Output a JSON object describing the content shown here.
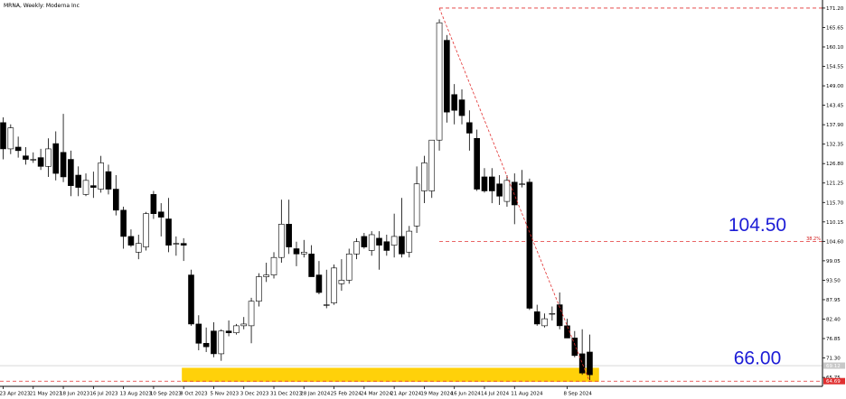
{
  "chart_data": {
    "type": "candlestick",
    "title": "MRNA, Weekly:  Moderna Inc",
    "ylim": [
      63.2,
      173.5
    ],
    "y_ticks": [
      "171.20",
      "165.65",
      "160.10",
      "154.55",
      "149.00",
      "143.45",
      "137.90",
      "132.35",
      "126.80",
      "121.25",
      "115.70",
      "110.15",
      "104.60",
      "99.05",
      "93.50",
      "87.95",
      "82.40",
      "76.85",
      "71.30",
      "65.75"
    ],
    "x_tick_labels": [
      "23 Apr 2023",
      "21 May 2023",
      "18 Jun 2023",
      "16 Jul 2023",
      "13 Aug 2023",
      "10 Sep 2023",
      "8 Oct 2023",
      "5 Nov 2023",
      "3 Dec 2023",
      "31 Dec 2023",
      "28 Jan 2024",
      "25 Feb 2024",
      "24 Mar 2024",
      "21 Apr 2024",
      "19 May 2024",
      "16 Jun 2024",
      "14 Jul 2024",
      "11 Aug 2024",
      "8 Sep 2024"
    ],
    "candles": [
      {
        "o": 138.5,
        "h": 140.0,
        "l": 128.0,
        "c": 131.0
      },
      {
        "o": 131.0,
        "h": 138.0,
        "l": 129.5,
        "c": 137.0
      },
      {
        "o": 131.5,
        "h": 134.5,
        "l": 128.5,
        "c": 130.5
      },
      {
        "o": 129.0,
        "h": 131.5,
        "l": 126.5,
        "c": 128.0
      },
      {
        "o": 128.0,
        "h": 130.0,
        "l": 127.0,
        "c": 128.0
      },
      {
        "o": 128.5,
        "h": 131.0,
        "l": 125.0,
        "c": 126.0
      },
      {
        "o": 126.0,
        "h": 134.0,
        "l": 123.0,
        "c": 131.0
      },
      {
        "o": 132.5,
        "h": 136.0,
        "l": 122.0,
        "c": 124.0
      },
      {
        "o": 130.0,
        "h": 141.0,
        "l": 121.5,
        "c": 123.0
      },
      {
        "o": 128.0,
        "h": 130.5,
        "l": 117.5,
        "c": 120.5
      },
      {
        "o": 123.5,
        "h": 126.0,
        "l": 117.5,
        "c": 120.0
      },
      {
        "o": 118.0,
        "h": 124.0,
        "l": 117.5,
        "c": 122.0
      },
      {
        "o": 120.5,
        "h": 124.5,
        "l": 117.0,
        "c": 120.0
      },
      {
        "o": 119.5,
        "h": 129.0,
        "l": 118.5,
        "c": 127.0
      },
      {
        "o": 124.5,
        "h": 126.5,
        "l": 118.0,
        "c": 119.5
      },
      {
        "o": 119.5,
        "h": 123.5,
        "l": 112.0,
        "c": 113.5
      },
      {
        "o": 113.5,
        "h": 114.5,
        "l": 102.5,
        "c": 106.0
      },
      {
        "o": 106.0,
        "h": 108.0,
        "l": 103.0,
        "c": 103.5
      },
      {
        "o": 101.5,
        "h": 106.5,
        "l": 99.5,
        "c": 104.0
      },
      {
        "o": 103.0,
        "h": 113.0,
        "l": 102.0,
        "c": 112.5
      },
      {
        "o": 118.0,
        "h": 119.0,
        "l": 111.0,
        "c": 112.5
      },
      {
        "o": 113.0,
        "h": 115.5,
        "l": 106.0,
        "c": 111.5
      },
      {
        "o": 111.0,
        "h": 117.0,
        "l": 101.5,
        "c": 103.5
      },
      {
        "o": 104.0,
        "h": 106.0,
        "l": 100.5,
        "c": 104.0
      },
      {
        "o": 104.0,
        "h": 105.5,
        "l": 99.0,
        "c": 103.5
      },
      {
        "o": 95.0,
        "h": 96.5,
        "l": 80.5,
        "c": 81.0
      },
      {
        "o": 81.0,
        "h": 83.5,
        "l": 73.5,
        "c": 75.5
      },
      {
        "o": 75.5,
        "h": 80.0,
        "l": 73.0,
        "c": 74.5
      },
      {
        "o": 79.0,
        "h": 81.5,
        "l": 71.5,
        "c": 72.5
      },
      {
        "o": 72.5,
        "h": 79.5,
        "l": 70.5,
        "c": 79.0
      },
      {
        "o": 79.0,
        "h": 82.0,
        "l": 77.5,
        "c": 78.5
      },
      {
        "o": 78.5,
        "h": 81.0,
        "l": 78.0,
        "c": 80.5
      },
      {
        "o": 80.5,
        "h": 83.0,
        "l": 79.5,
        "c": 81.0
      },
      {
        "o": 80.5,
        "h": 88.5,
        "l": 75.5,
        "c": 87.5
      },
      {
        "o": 87.5,
        "h": 95.5,
        "l": 86.0,
        "c": 94.5
      },
      {
        "o": 94.5,
        "h": 98.5,
        "l": 93.0,
        "c": 95.0
      },
      {
        "o": 95.0,
        "h": 101.5,
        "l": 94.0,
        "c": 100.0
      },
      {
        "o": 100.0,
        "h": 116.5,
        "l": 98.5,
        "c": 109.5
      },
      {
        "o": 109.5,
        "h": 116.5,
        "l": 101.0,
        "c": 103.0
      },
      {
        "o": 102.5,
        "h": 104.5,
        "l": 97.5,
        "c": 101.0
      },
      {
        "o": 101.0,
        "h": 105.0,
        "l": 100.0,
        "c": 101.5
      },
      {
        "o": 101.0,
        "h": 103.5,
        "l": 94.5,
        "c": 94.5
      },
      {
        "o": 95.0,
        "h": 99.0,
        "l": 89.5,
        "c": 90.0
      },
      {
        "o": 86.5,
        "h": 96.5,
        "l": 85.5,
        "c": 86.5
      },
      {
        "o": 87.0,
        "h": 98.0,
        "l": 86.5,
        "c": 97.0
      },
      {
        "o": 92.5,
        "h": 99.5,
        "l": 90.5,
        "c": 93.5
      },
      {
        "o": 93.5,
        "h": 102.5,
        "l": 92.5,
        "c": 101.0
      },
      {
        "o": 101.0,
        "h": 105.5,
        "l": 99.5,
        "c": 104.5
      },
      {
        "o": 106.0,
        "h": 107.0,
        "l": 102.5,
        "c": 103.0
      },
      {
        "o": 102.0,
        "h": 107.5,
        "l": 100.5,
        "c": 106.5
      },
      {
        "o": 105.5,
        "h": 107.5,
        "l": 96.5,
        "c": 103.5
      },
      {
        "o": 104.5,
        "h": 106.5,
        "l": 100.5,
        "c": 102.0
      },
      {
        "o": 103.5,
        "h": 112.5,
        "l": 100.0,
        "c": 106.0
      },
      {
        "o": 106.0,
        "h": 117.0,
        "l": 100.0,
        "c": 101.0
      },
      {
        "o": 101.5,
        "h": 109.0,
        "l": 100.0,
        "c": 107.5
      },
      {
        "o": 109.0,
        "h": 126.0,
        "l": 107.0,
        "c": 121.0
      },
      {
        "o": 119.0,
        "h": 129.0,
        "l": 115.5,
        "c": 127.0
      },
      {
        "o": 119.0,
        "h": 133.5,
        "l": 117.0,
        "c": 133.5
      },
      {
        "o": 133.5,
        "h": 168.0,
        "l": 130.5,
        "c": 167.0
      },
      {
        "o": 162.0,
        "h": 163.5,
        "l": 138.5,
        "c": 141.5
      },
      {
        "o": 146.5,
        "h": 149.5,
        "l": 138.0,
        "c": 142.0
      },
      {
        "o": 145.0,
        "h": 148.0,
        "l": 138.0,
        "c": 140.5
      },
      {
        "o": 138.5,
        "h": 142.0,
        "l": 130.5,
        "c": 135.5
      },
      {
        "o": 134.0,
        "h": 136.5,
        "l": 119.0,
        "c": 119.5
      },
      {
        "o": 123.0,
        "h": 125.5,
        "l": 118.5,
        "c": 119.0
      },
      {
        "o": 123.0,
        "h": 125.5,
        "l": 115.5,
        "c": 119.0
      },
      {
        "o": 121.0,
        "h": 123.5,
        "l": 115.0,
        "c": 117.5
      },
      {
        "o": 116.0,
        "h": 123.5,
        "l": 114.5,
        "c": 122.0
      },
      {
        "o": 121.5,
        "h": 124.0,
        "l": 109.5,
        "c": 115.0
      },
      {
        "o": 121.0,
        "h": 125.0,
        "l": 120.0,
        "c": 121.0
      },
      {
        "o": 121.5,
        "h": 122.5,
        "l": 85.0,
        "c": 85.5
      },
      {
        "o": 84.5,
        "h": 86.5,
        "l": 80.5,
        "c": 81.0
      },
      {
        "o": 80.5,
        "h": 84.0,
        "l": 80.0,
        "c": 82.5
      },
      {
        "o": 84.0,
        "h": 86.0,
        "l": 82.0,
        "c": 84.0
      },
      {
        "o": 86.5,
        "h": 90.0,
        "l": 79.5,
        "c": 80.5
      },
      {
        "o": 80.5,
        "h": 82.5,
        "l": 77.0,
        "c": 77.0
      },
      {
        "o": 77.0,
        "h": 79.0,
        "l": 71.5,
        "c": 72.0
      },
      {
        "o": 72.5,
        "h": 79.5,
        "l": 66.5,
        "c": 67.0
      },
      {
        "o": 73.0,
        "h": 78.0,
        "l": 65.0,
        "c": 66.5
      }
    ],
    "fib_trend": {
      "from": {
        "index": 58,
        "price": 171.2
      },
      "to": {
        "index": 78,
        "price": 64.5
      }
    },
    "levels": [
      {
        "price": 171.2,
        "label": "",
        "color": "#e23030"
      },
      {
        "price": 104.6,
        "label": "38.2%",
        "color": "#e23030"
      },
      {
        "price": 64.69,
        "label": "",
        "color": "#e23030"
      }
    ],
    "current_price": {
      "value": "69.12",
      "price": 69.12
    },
    "low_tag": {
      "value": "64.69",
      "price": 64.69,
      "color": "#e03030"
    },
    "annotations": [
      {
        "text": "104.50",
        "price": 107.5
      },
      {
        "text": "66.00",
        "price": 69.5
      }
    ],
    "support_zone": {
      "from_index": 24,
      "to_index": 79,
      "top": 68.5,
      "bottom": 64.5,
      "color": "#ffd10a"
    }
  }
}
